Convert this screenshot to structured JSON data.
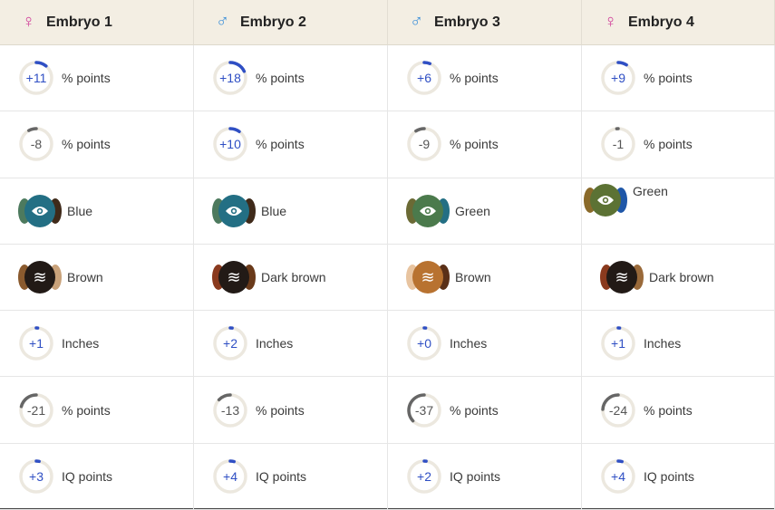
{
  "colors": {
    "female": "#d0409a",
    "male": "#3a8fd8",
    "positive": "#2f4fc4",
    "negative": "#666666",
    "track": "#ece8df"
  },
  "columns": [
    {
      "sex": "female",
      "symbol": "♀",
      "title": "Embryo 1"
    },
    {
      "sex": "male",
      "symbol": "♂",
      "title": "Embryo 2"
    },
    {
      "sex": "male",
      "symbol": "♂",
      "title": "Embryo 3"
    },
    {
      "sex": "female",
      "symbol": "♀",
      "title": "Embryo 4"
    }
  ],
  "rows": [
    {
      "type": "ring",
      "cells": [
        {
          "value": "+11",
          "amount": 11,
          "unit": "% points"
        },
        {
          "value": "+18",
          "amount": 18,
          "unit": "% points"
        },
        {
          "value": "+6",
          "amount": 6,
          "unit": "% points"
        },
        {
          "value": "+9",
          "amount": 9,
          "unit": "% points"
        }
      ]
    },
    {
      "type": "ring",
      "cells": [
        {
          "value": "-8",
          "amount": -8,
          "unit": "% points"
        },
        {
          "value": "+10",
          "amount": 10,
          "unit": "% points"
        },
        {
          "value": "-9",
          "amount": -9,
          "unit": "% points"
        },
        {
          "value": "-1",
          "amount": -1,
          "unit": "% points"
        }
      ]
    },
    {
      "type": "eye",
      "cells": [
        {
          "label": "Blue",
          "main": "#236f84",
          "left": "#4d7a5e",
          "right": "#3f2a1a"
        },
        {
          "label": "Blue",
          "main": "#236f84",
          "left": "#4d7a5e",
          "right": "#3f2a1a"
        },
        {
          "label": "Green",
          "main": "#4b7a4c",
          "left": "#6b6a35",
          "right": "#236f84"
        },
        {
          "label": "Green",
          "main": "#5c7234",
          "left": "#8a6a2a",
          "right": "#1f57a8"
        }
      ]
    },
    {
      "type": "hair",
      "cells": [
        {
          "label": "Brown",
          "main": "#221a16",
          "left": "#8a5a2e",
          "right": "#c9a27a"
        },
        {
          "label": "Dark brown",
          "main": "#221a16",
          "left": "#8a3a1e",
          "right": "#6a3a1a"
        },
        {
          "label": "Brown",
          "main": "#b87230",
          "left": "#e8c4a0",
          "right": "#5a3018"
        },
        {
          "label": "Dark brown",
          "main": "#221a16",
          "left": "#8a3a1e",
          "right": "#9a6a3a"
        }
      ]
    },
    {
      "type": "ring",
      "cells": [
        {
          "value": "+1",
          "amount": 1,
          "unit": "Inches"
        },
        {
          "value": "+2",
          "amount": 2,
          "unit": "Inches"
        },
        {
          "value": "+0",
          "amount": 0,
          "unit": "Inches"
        },
        {
          "value": "+1",
          "amount": 1,
          "unit": "Inches"
        }
      ]
    },
    {
      "type": "ring",
      "cells": [
        {
          "value": "-21",
          "amount": -21,
          "unit": "% points"
        },
        {
          "value": "-13",
          "amount": -13,
          "unit": "% points"
        },
        {
          "value": "-37",
          "amount": -37,
          "unit": "% points"
        },
        {
          "value": "-24",
          "amount": -24,
          "unit": "% points"
        }
      ]
    },
    {
      "type": "ring",
      "cells": [
        {
          "value": "+3",
          "amount": 3,
          "unit": "IQ points"
        },
        {
          "value": "+4",
          "amount": 4,
          "unit": "IQ points"
        },
        {
          "value": "+2",
          "amount": 2,
          "unit": "IQ points"
        },
        {
          "value": "+4",
          "amount": 4,
          "unit": "IQ points"
        }
      ]
    }
  ]
}
